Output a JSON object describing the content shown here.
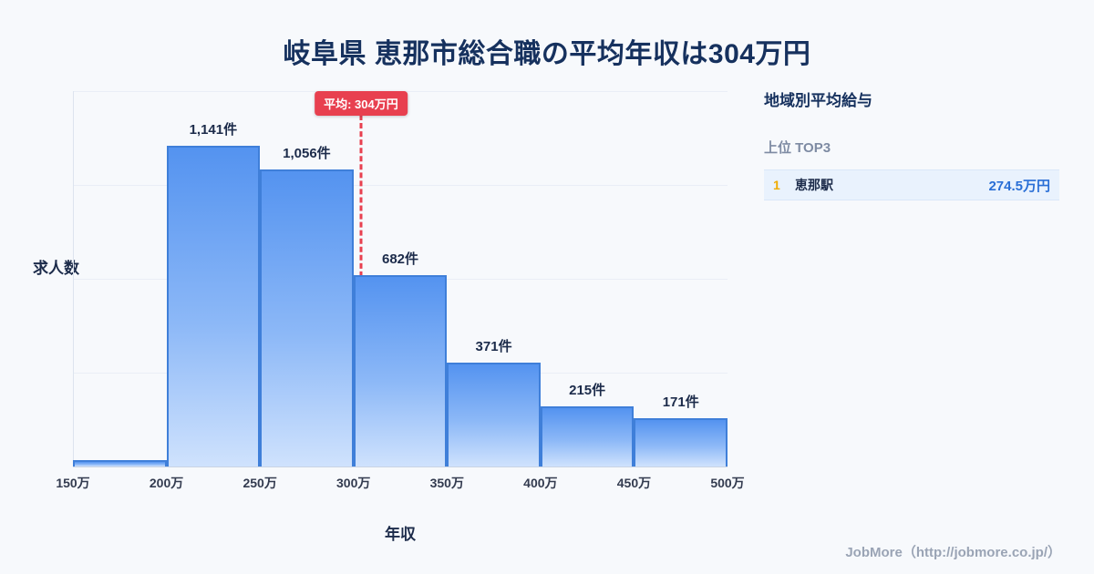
{
  "title": "岐阜県 恵那市総合職の平均年収は304万円",
  "chart_data": {
    "type": "bar",
    "bins": [
      "150万",
      "200万",
      "250万",
      "300万",
      "350万",
      "400万",
      "450万",
      "500万"
    ],
    "categories": [
      "150万-200万",
      "200万-250万",
      "250万-300万",
      "300万-350万",
      "350万-400万",
      "400万-450万",
      "450万-500万"
    ],
    "values": [
      23,
      1141,
      1056,
      682,
      371,
      215,
      171
    ],
    "labels": [
      "",
      "1,141件",
      "1,056件",
      "682件",
      "371件",
      "215件",
      "171件"
    ],
    "xlabel": "年収",
    "ylabel": "求人数",
    "x_range": [
      150,
      500
    ],
    "average_value": 304,
    "average_label": "平均: 304万円",
    "legend": "none",
    "grid": "horizontal-faint",
    "bar_fill_top": "#5493f0",
    "bar_fill_bottom": "#cfe2fd",
    "bar_border": "#3f7fd9",
    "average_color": "#e8404f"
  },
  "sidebar": {
    "title": "地域別平均給与",
    "subtitle": "上位 TOP3",
    "items": [
      {
        "rank": "1",
        "name": "恵那駅",
        "value": "274.5万円"
      }
    ]
  },
  "footer": {
    "credit": "JobMore（http://jobmore.co.jp/）"
  },
  "colors": {
    "background": "#f7f9fc",
    "title_text": "#16315e",
    "rank_number": "#f0ab00",
    "rank_value": "#2a6fd6"
  }
}
